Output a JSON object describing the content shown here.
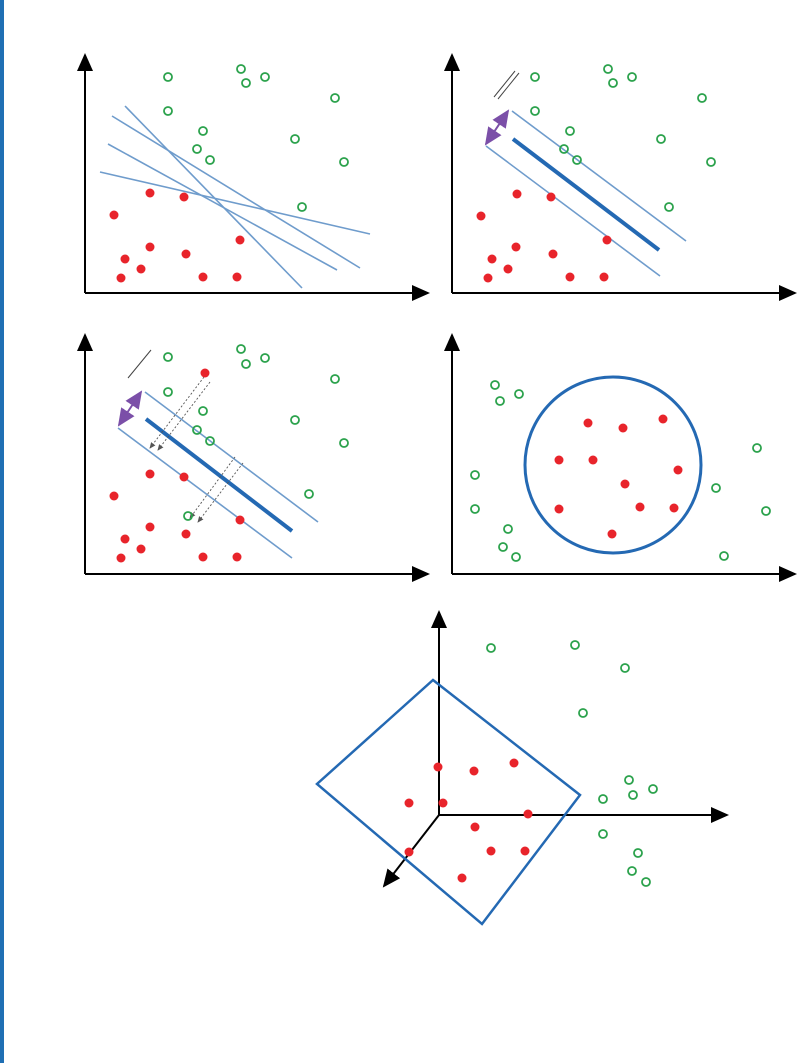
{
  "colors": {
    "page_rule": "#1f6fb4",
    "axis": "#000000",
    "class_a_fill": "#e8242b",
    "class_b_stroke": "#2ba24c",
    "boundary": "#2469b3",
    "boundary_light": "#6f9ccc",
    "margin_arrow": "#7b4fa8",
    "distance_arrow": "#555555"
  },
  "panels": [
    {
      "id": "candidate-lines",
      "description_marks": [
        "axes",
        "points",
        "candidate-lines"
      ]
    },
    {
      "id": "max-margin",
      "description_marks": [
        "axes",
        "points",
        "hyperplane",
        "margins",
        "margin-arrow"
      ]
    },
    {
      "id": "slack-variables",
      "description_marks": [
        "axes",
        "points",
        "hyperplane",
        "margins",
        "margin-arrow",
        "distance-arrows"
      ]
    },
    {
      "id": "circular-boundary",
      "description_marks": [
        "axes",
        "points",
        "circle"
      ]
    },
    {
      "id": "3d-plane",
      "description_marks": [
        "axes-3d",
        "points",
        "plane"
      ]
    }
  ]
}
